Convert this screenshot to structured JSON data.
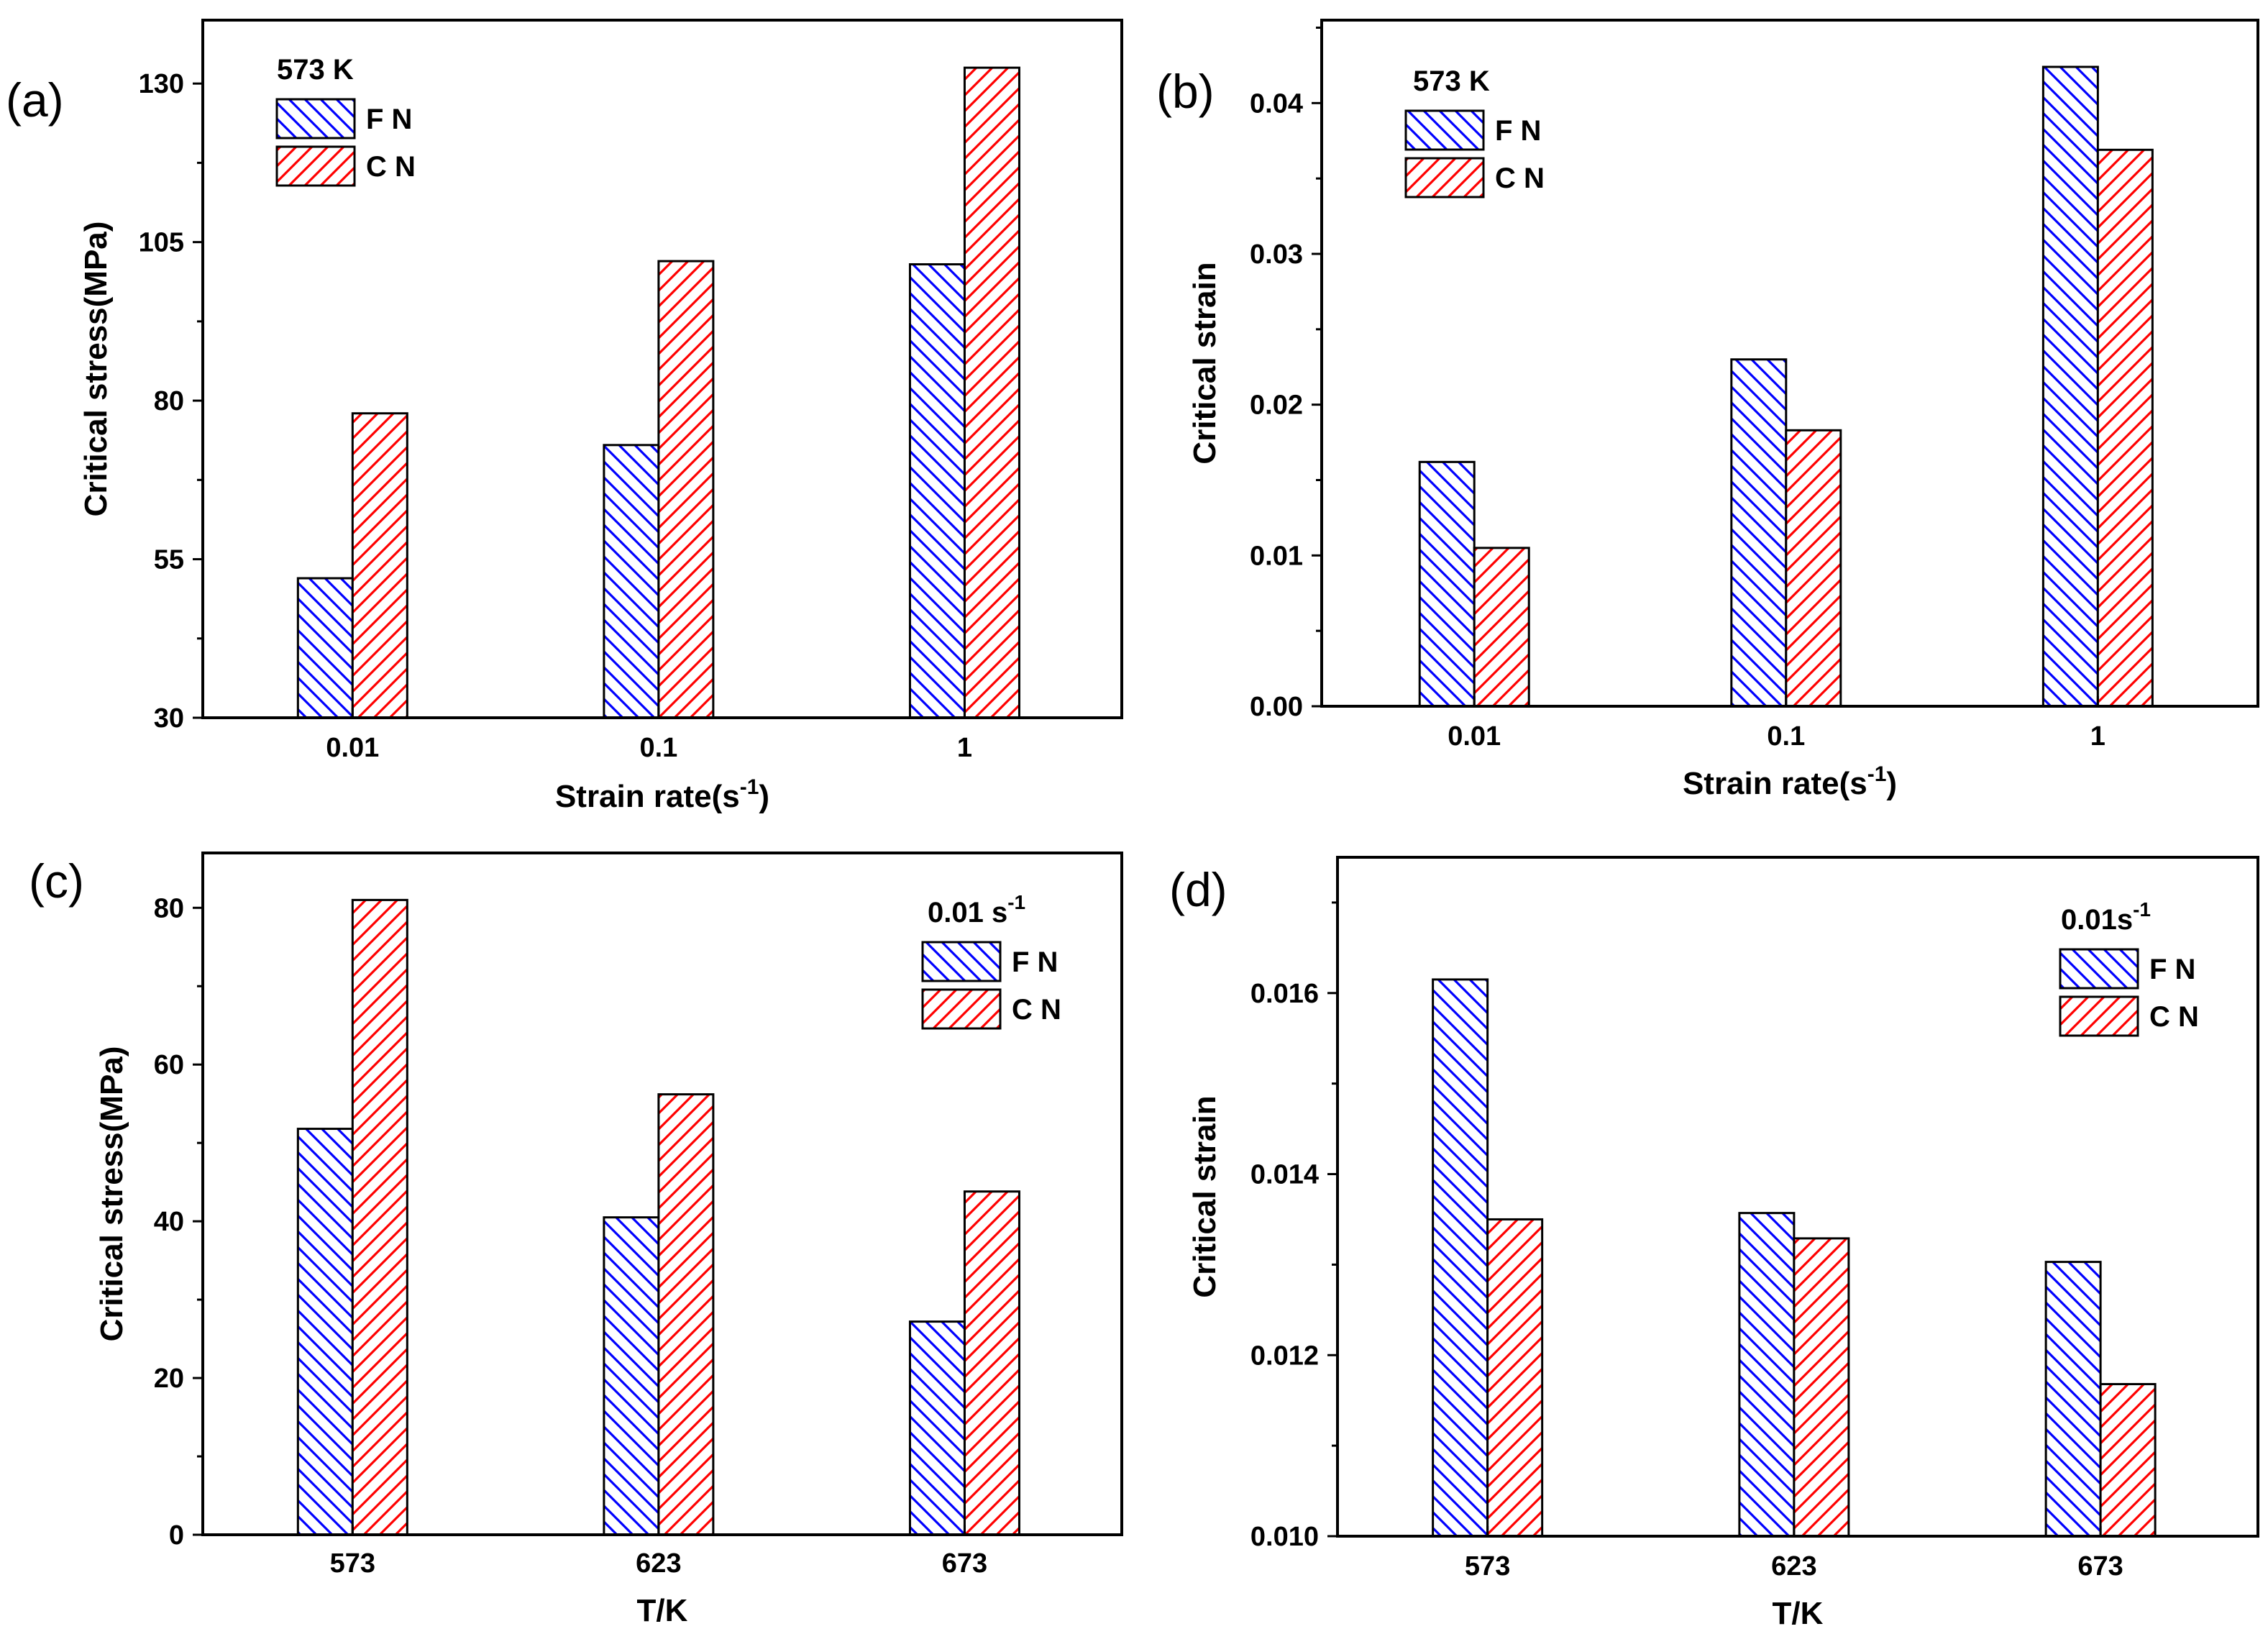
{
  "colors": {
    "fn": "#0000ff",
    "cn": "#ff0000",
    "frame": "#000000"
  },
  "chart_data": [
    {
      "type": "bar",
      "panel_label": "(a)",
      "categories": [
        "0.01",
        "0.1",
        "1"
      ],
      "series": [
        {
          "name": "F N",
          "values": [
            52,
            73,
            101.5
          ]
        },
        {
          "name": "C N",
          "values": [
            78,
            102,
            132.5
          ]
        }
      ],
      "ylim": [
        30,
        140
      ],
      "yticks": [
        30,
        55,
        80,
        105,
        130
      ],
      "ytick_labels": [
        "30",
        "55",
        "80",
        "105",
        "130"
      ],
      "xlabel_main": "Strain rate(s",
      "xlabel_sup": "-1",
      "xlabel_tail": ")",
      "ylabel": "Critical stress(MPa)",
      "legend_title": "573 K",
      "legend_title_sup": "",
      "legend_position": "top-left"
    },
    {
      "type": "bar",
      "panel_label": "(b)",
      "categories": [
        "0.01",
        "0.1",
        "1"
      ],
      "series": [
        {
          "name": "F N",
          "values": [
            0.0162,
            0.023,
            0.0424
          ]
        },
        {
          "name": "C N",
          "values": [
            0.0105,
            0.0183,
            0.0369
          ]
        }
      ],
      "ylim": [
        0,
        0.0455
      ],
      "yticks": [
        0,
        0.01,
        0.02,
        0.03,
        0.04
      ],
      "ytick_labels": [
        "0.00",
        "0.01",
        "0.02",
        "0.03",
        "0.04"
      ],
      "xlabel_main": "Strain rate(s",
      "xlabel_sup": "-1",
      "xlabel_tail": ")",
      "ylabel": "Critical strain",
      "legend_title": "573 K",
      "legend_title_sup": "",
      "legend_position": "top-left"
    },
    {
      "type": "bar",
      "panel_label": "(c)",
      "categories": [
        "573",
        "623",
        "673"
      ],
      "series": [
        {
          "name": "F N",
          "values": [
            51.8,
            40.5,
            27.2
          ]
        },
        {
          "name": "C N",
          "values": [
            81,
            56.2,
            43.8
          ]
        }
      ],
      "ylim": [
        0,
        87
      ],
      "yticks": [
        0,
        20,
        40,
        60,
        80
      ],
      "ytick_labels": [
        "0",
        "20",
        "40",
        "60",
        "80"
      ],
      "xlabel_main": "T/K",
      "xlabel_sup": "",
      "xlabel_tail": "",
      "ylabel": "Critical stress(MPa)",
      "legend_title": "0.01 s",
      "legend_title_sup": "-1",
      "legend_position": "top-right"
    },
    {
      "type": "bar",
      "panel_label": "(d)",
      "categories": [
        "573",
        "623",
        "673"
      ],
      "series": [
        {
          "name": "F N",
          "values": [
            0.01615,
            0.01357,
            0.01303
          ]
        },
        {
          "name": "C N",
          "values": [
            0.0135,
            0.01329,
            0.01168
          ]
        }
      ],
      "ylim": [
        0.01,
        0.0175
      ],
      "yticks": [
        0.01,
        0.012,
        0.014,
        0.016
      ],
      "ytick_labels": [
        "0.010",
        "0.012",
        "0.014",
        "0.016"
      ],
      "xlabel_main": "T/K",
      "xlabel_sup": "",
      "xlabel_tail": "",
      "ylabel": "Critical strain",
      "legend_title": "0.01s",
      "legend_title_sup": "-1",
      "legend_position": "top-right"
    }
  ]
}
